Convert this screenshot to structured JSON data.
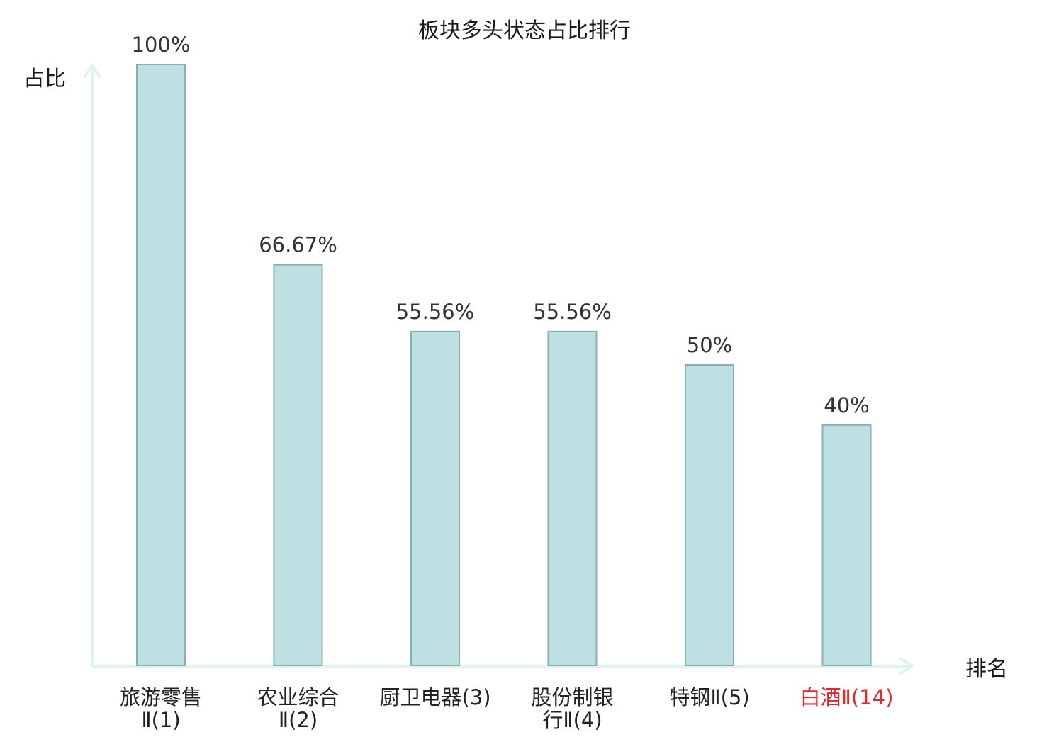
{
  "chart_data": {
    "type": "bar",
    "title": "板块多头状态占比排行",
    "ylabel": "占比",
    "xlabel": "排名",
    "ylim": [
      0,
      100
    ],
    "grid": false,
    "legend": "none",
    "categories": [
      [
        "旅游零售",
        "Ⅱ(1)"
      ],
      [
        "农业综合",
        "Ⅱ(2)"
      ],
      [
        "厨卫电器(3)"
      ],
      [
        "股份制银",
        "行Ⅱ(4)"
      ],
      [
        "特钢Ⅱ(5)"
      ],
      [
        "白酒Ⅱ(14)"
      ]
    ],
    "values": [
      100,
      66.67,
      55.56,
      55.56,
      50,
      40
    ],
    "value_labels": [
      "100%",
      "66.67%",
      "55.56%",
      "55.56%",
      "50%",
      "40%"
    ],
    "highlight_index": 5,
    "colors": {
      "bar_fill": "#bde0e2",
      "bar_stroke": "#8aaeb1",
      "axis": "#dff3f0",
      "text": "#1a1a1a",
      "value_text": "#333333",
      "category_text": "#222222",
      "category_paren": "#555555",
      "highlight": "#e8262a"
    }
  }
}
